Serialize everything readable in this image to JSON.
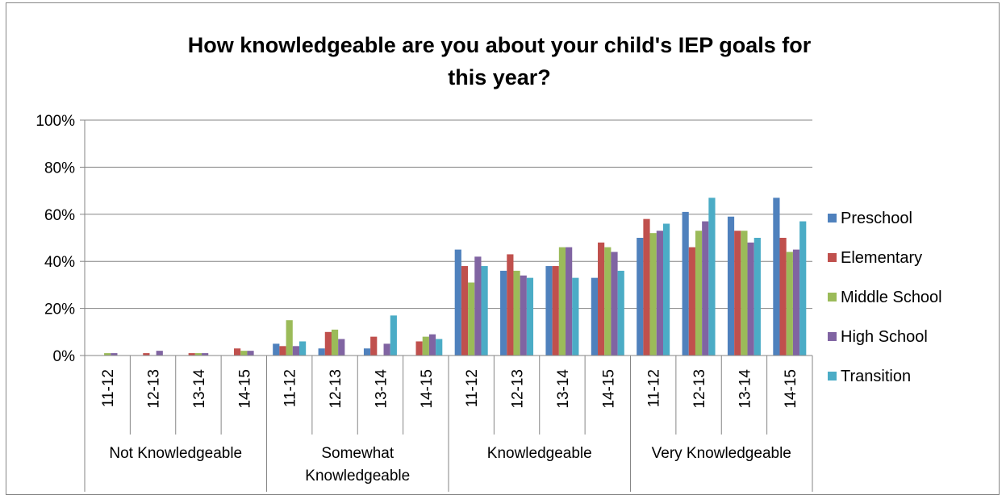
{
  "chart_data": {
    "type": "bar",
    "title_lines": [
      "How knowledgeable are you about your child's IEP goals for",
      "this year?"
    ],
    "groups": [
      "Not Knowledgeable",
      "Somewhat Knowledgeable",
      "Knowledgeable",
      "Very Knowledgeable"
    ],
    "group_label_lines": [
      [
        "Not Knowledgeable"
      ],
      [
        "Somewhat",
        "Knowledgeable"
      ],
      [
        "Knowledgeable"
      ],
      [
        "Very Knowledgeable"
      ]
    ],
    "years": [
      "11-12",
      "12-13",
      "13-14",
      "14-15"
    ],
    "yticks": [
      "0%",
      "20%",
      "40%",
      "60%",
      "80%",
      "100%"
    ],
    "ylim": [
      0,
      100
    ],
    "legend_position": "right",
    "series": [
      {
        "name": "Preschool",
        "color": "#4f81bd",
        "values": [
          0,
          0,
          0,
          0,
          5,
          3,
          3,
          0,
          45,
          36,
          38,
          33,
          50,
          61,
          59,
          67
        ]
      },
      {
        "name": "Elementary",
        "color": "#c0504d",
        "values": [
          0,
          1,
          1,
          3,
          4,
          10,
          8,
          6,
          38,
          43,
          38,
          48,
          58,
          46,
          53,
          50
        ]
      },
      {
        "name": "Middle School",
        "color": "#9bbb59",
        "values": [
          1,
          0,
          1,
          2,
          15,
          11,
          0,
          8,
          31,
          36,
          46,
          46,
          52,
          53,
          53,
          44
        ]
      },
      {
        "name": "High School",
        "color": "#8064a2",
        "values": [
          1,
          2,
          1,
          2,
          4,
          7,
          5,
          9,
          42,
          34,
          46,
          44,
          53,
          57,
          48,
          45
        ]
      },
      {
        "name": "Transition",
        "color": "#4bacc6",
        "values": [
          0,
          0,
          0,
          0,
          6,
          0,
          17,
          7,
          38,
          33,
          33,
          36,
          56,
          67,
          50,
          57
        ]
      }
    ]
  }
}
